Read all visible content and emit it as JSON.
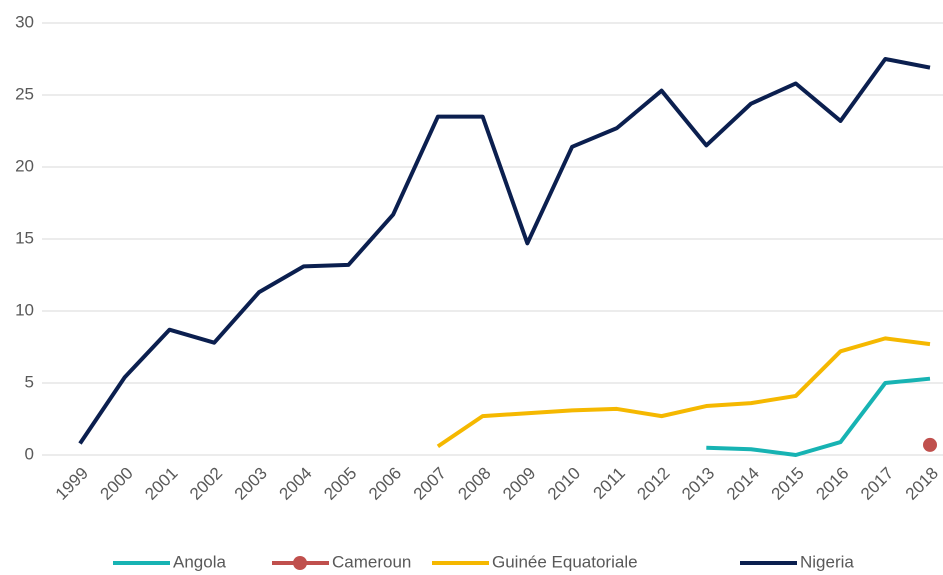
{
  "chart_data": {
    "type": "line",
    "categories": [
      "1999",
      "2000",
      "2001",
      "2002",
      "2003",
      "2004",
      "2005",
      "2006",
      "2007",
      "2008",
      "2009",
      "2010",
      "2011",
      "2012",
      "2013",
      "2014",
      "2015",
      "2016",
      "2017",
      "2018"
    ],
    "series": [
      {
        "name": "Angola",
        "color": "#17b3b3",
        "values": [
          null,
          null,
          null,
          null,
          null,
          null,
          null,
          null,
          null,
          null,
          null,
          null,
          null,
          null,
          0.5,
          0.4,
          0.0,
          0.9,
          5.0,
          5.3
        ]
      },
      {
        "name": "Cameroun",
        "color": "#c0504d",
        "marker": true,
        "values": [
          null,
          null,
          null,
          null,
          null,
          null,
          null,
          null,
          null,
          null,
          null,
          null,
          null,
          null,
          null,
          null,
          null,
          null,
          null,
          0.7
        ]
      },
      {
        "name": "Guinée Equatoriale",
        "color": "#f5b800",
        "values": [
          null,
          null,
          null,
          null,
          null,
          null,
          null,
          null,
          0.6,
          2.7,
          2.9,
          3.1,
          3.2,
          2.7,
          3.4,
          3.6,
          4.1,
          7.2,
          8.1,
          7.7
        ]
      },
      {
        "name": "Nigeria",
        "color": "#0b1f4f",
        "values": [
          0.8,
          5.4,
          8.7,
          7.8,
          11.3,
          13.1,
          13.2,
          16.7,
          23.5,
          23.5,
          14.7,
          21.4,
          22.7,
          25.3,
          21.5,
          24.4,
          25.8,
          23.2,
          27.5,
          26.9
        ]
      }
    ],
    "ylim": [
      0,
      30
    ],
    "yticks": [
      0,
      5,
      10,
      15,
      20,
      25,
      30
    ],
    "grid": true,
    "legend": "bottom"
  }
}
